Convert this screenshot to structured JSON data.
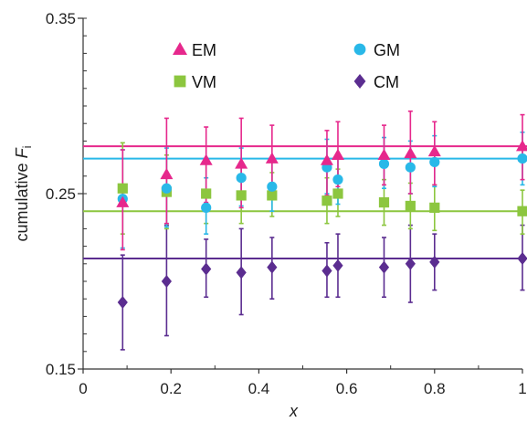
{
  "chart_data": {
    "type": "scatter",
    "xlabel": "x",
    "ylabel_prefix": "cumulative ",
    "ylabel_var": "F",
    "ylabel_sub": "i",
    "xlim": [
      0,
      1
    ],
    "ylim": [
      0.15,
      0.35
    ],
    "x_ticks": [
      0,
      0.2,
      0.4,
      0.6,
      0.8,
      1
    ],
    "x_tick_labels": [
      "0",
      "0.2",
      "0.4",
      "0.6",
      "0.8",
      "1"
    ],
    "y_ticks": [
      0.15,
      0.25,
      0.35
    ],
    "y_tick_labels": [
      "0.15",
      "0.25",
      "0.35"
    ],
    "legend_placement": "top-center",
    "series": [
      {
        "name": "EM",
        "color": "#e6288c",
        "marker": "triangle",
        "reference": 0.277,
        "points": [
          {
            "x": 0.09,
            "y": 0.245,
            "lo": 0.218,
            "hi": 0.275
          },
          {
            "x": 0.19,
            "y": 0.261,
            "lo": 0.233,
            "hi": 0.293
          },
          {
            "x": 0.28,
            "y": 0.269,
            "lo": 0.245,
            "hi": 0.288
          },
          {
            "x": 0.36,
            "y": 0.267,
            "lo": 0.242,
            "hi": 0.293
          },
          {
            "x": 0.43,
            "y": 0.27,
            "lo": 0.25,
            "hi": 0.289
          },
          {
            "x": 0.555,
            "y": 0.269,
            "lo": 0.249,
            "hi": 0.286
          },
          {
            "x": 0.58,
            "y": 0.272,
            "lo": 0.254,
            "hi": 0.291
          },
          {
            "x": 0.685,
            "y": 0.272,
            "lo": 0.255,
            "hi": 0.289
          },
          {
            "x": 0.745,
            "y": 0.273,
            "lo": 0.25,
            "hi": 0.297
          },
          {
            "x": 0.8,
            "y": 0.274,
            "lo": 0.255,
            "hi": 0.291
          },
          {
            "x": 1.0,
            "y": 0.277,
            "lo": 0.258,
            "hi": 0.295
          }
        ]
      },
      {
        "name": "GM",
        "color": "#29b8e8",
        "marker": "circle",
        "reference": 0.27,
        "points": [
          {
            "x": 0.09,
            "y": 0.247,
            "lo": 0.219,
            "hi": 0.275
          },
          {
            "x": 0.19,
            "y": 0.253,
            "lo": 0.231,
            "hi": 0.276
          },
          {
            "x": 0.28,
            "y": 0.242,
            "lo": 0.227,
            "hi": 0.259
          },
          {
            "x": 0.36,
            "y": 0.259,
            "lo": 0.243,
            "hi": 0.276
          },
          {
            "x": 0.43,
            "y": 0.254,
            "lo": 0.24,
            "hi": 0.269
          },
          {
            "x": 0.555,
            "y": 0.265,
            "lo": 0.25,
            "hi": 0.281
          },
          {
            "x": 0.58,
            "y": 0.258,
            "lo": 0.244,
            "hi": 0.273
          },
          {
            "x": 0.685,
            "y": 0.267,
            "lo": 0.253,
            "hi": 0.282
          },
          {
            "x": 0.745,
            "y": 0.265,
            "lo": 0.25,
            "hi": 0.28
          },
          {
            "x": 0.8,
            "y": 0.268,
            "lo": 0.254,
            "hi": 0.283
          },
          {
            "x": 1.0,
            "y": 0.27,
            "lo": 0.255,
            "hi": 0.285
          }
        ]
      },
      {
        "name": "VM",
        "color": "#8cc63f",
        "marker": "square",
        "reference": 0.24,
        "points": [
          {
            "x": 0.09,
            "y": 0.253,
            "lo": 0.227,
            "hi": 0.279
          },
          {
            "x": 0.19,
            "y": 0.251,
            "lo": 0.23,
            "hi": 0.272
          },
          {
            "x": 0.28,
            "y": 0.25,
            "lo": 0.233,
            "hi": 0.268
          },
          {
            "x": 0.36,
            "y": 0.249,
            "lo": 0.233,
            "hi": 0.266
          },
          {
            "x": 0.43,
            "y": 0.249,
            "lo": 0.237,
            "hi": 0.262
          },
          {
            "x": 0.555,
            "y": 0.246,
            "lo": 0.233,
            "hi": 0.259
          },
          {
            "x": 0.58,
            "y": 0.25,
            "lo": 0.237,
            "hi": 0.264
          },
          {
            "x": 0.685,
            "y": 0.245,
            "lo": 0.232,
            "hi": 0.258
          },
          {
            "x": 0.745,
            "y": 0.243,
            "lo": 0.23,
            "hi": 0.256
          },
          {
            "x": 0.8,
            "y": 0.242,
            "lo": 0.229,
            "hi": 0.255
          },
          {
            "x": 1.0,
            "y": 0.24,
            "lo": 0.227,
            "hi": 0.252
          }
        ]
      },
      {
        "name": "CM",
        "color": "#5b2d90",
        "marker": "diamond",
        "reference": 0.213,
        "points": [
          {
            "x": 0.09,
            "y": 0.188,
            "lo": 0.161,
            "hi": 0.215
          },
          {
            "x": 0.19,
            "y": 0.2,
            "lo": 0.169,
            "hi": 0.232
          },
          {
            "x": 0.28,
            "y": 0.207,
            "lo": 0.191,
            "hi": 0.224
          },
          {
            "x": 0.36,
            "y": 0.205,
            "lo": 0.181,
            "hi": 0.23
          },
          {
            "x": 0.43,
            "y": 0.208,
            "lo": 0.19,
            "hi": 0.225
          },
          {
            "x": 0.555,
            "y": 0.206,
            "lo": 0.191,
            "hi": 0.222
          },
          {
            "x": 0.58,
            "y": 0.209,
            "lo": 0.191,
            "hi": 0.227
          },
          {
            "x": 0.685,
            "y": 0.208,
            "lo": 0.191,
            "hi": 0.225
          },
          {
            "x": 0.745,
            "y": 0.21,
            "lo": 0.188,
            "hi": 0.232
          },
          {
            "x": 0.8,
            "y": 0.211,
            "lo": 0.195,
            "hi": 0.227
          },
          {
            "x": 1.0,
            "y": 0.213,
            "lo": 0.195,
            "hi": 0.232
          }
        ]
      }
    ]
  }
}
